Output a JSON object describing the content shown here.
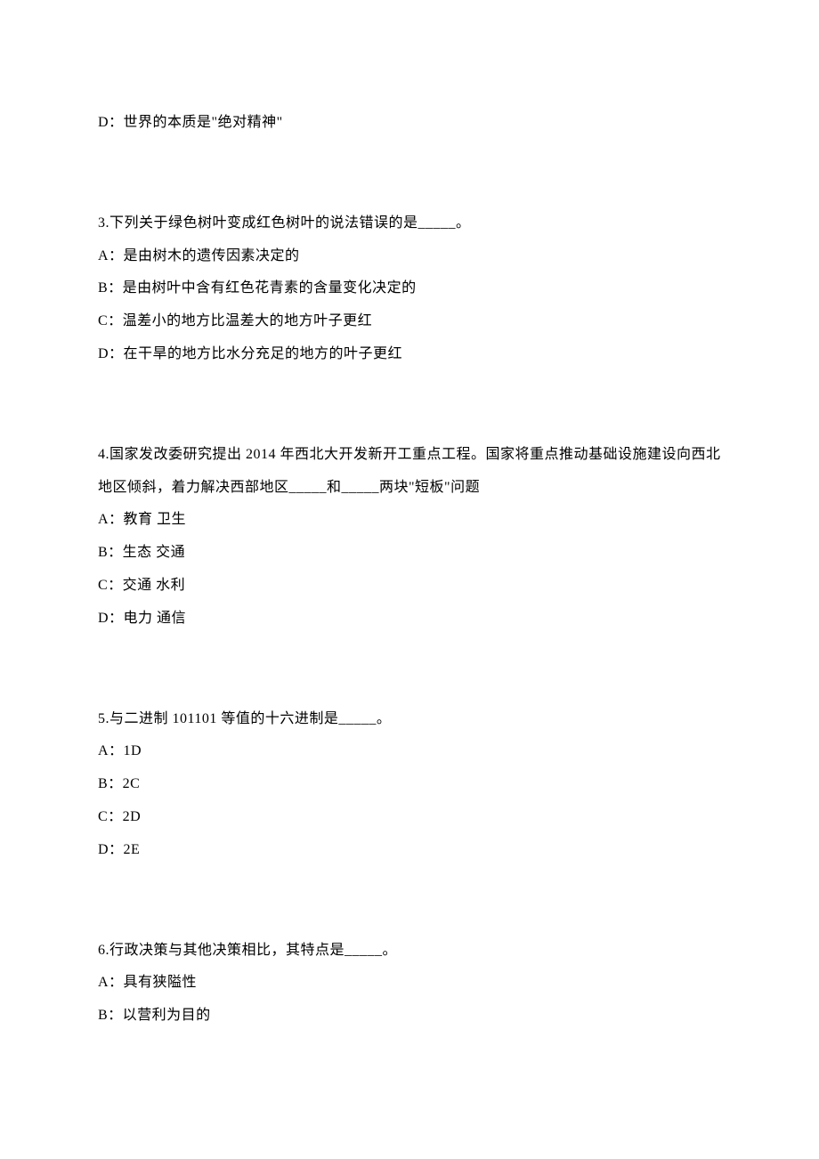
{
  "partial_option": {
    "text": "D：世界的本质是\"绝对精神\""
  },
  "questions": [
    {
      "stem": "3.下列关于绿色树叶变成红色树叶的说法错误的是_____。",
      "options": [
        "A：是由树木的遗传因素决定的",
        "B：是由树叶中含有红色花青素的含量变化决定的",
        "C：温差小的地方比温差大的地方叶子更红",
        "D：在干旱的地方比水分充足的地方的叶子更红"
      ]
    },
    {
      "stem": "4.国家发改委研究提出 2014 年西北大开发新开工重点工程。国家将重点推动基础设施建设向西北地区倾斜，着力解决西部地区_____和_____两块\"短板\"问题",
      "options": [
        "A：教育 卫生",
        "B：生态 交通",
        "C：交通 水利",
        "D：电力 通信"
      ]
    },
    {
      "stem": "5.与二进制 101101 等值的十六进制是_____。",
      "options": [
        "A：1D",
        "B：2C",
        "C：2D",
        "D：2E"
      ]
    },
    {
      "stem": "6.行政决策与其他决策相比，其特点是_____。",
      "options": [
        "A：具有狭隘性",
        "B：以营利为目的"
      ]
    }
  ]
}
